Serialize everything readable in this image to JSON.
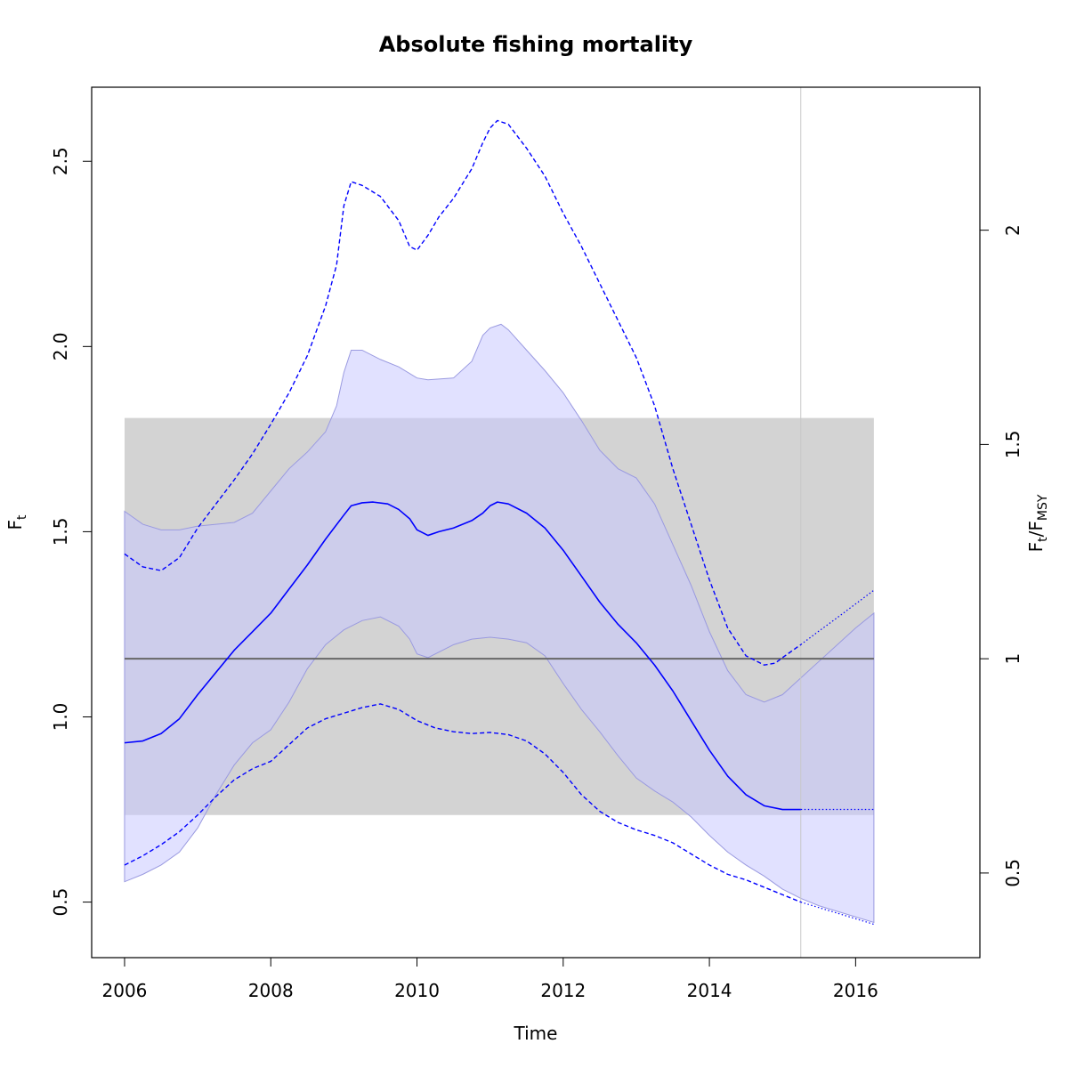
{
  "chart_data": {
    "type": "line",
    "title": "Absolute fishing mortality",
    "xlabel": "Time",
    "ylabel": {
      "main": "F",
      "sub": "t"
    },
    "ylabel_right": {
      "a": "F",
      "a_sub": "t",
      "slash": "/",
      "b": "F",
      "b_sub": "MSY"
    },
    "xlim": [
      2005.55,
      2017.7
    ],
    "ylim": [
      0.35,
      2.7
    ],
    "xticks": [
      2006,
      2008,
      2010,
      2012,
      2014,
      2016
    ],
    "xtick_labels": [
      "2006",
      "2008",
      "2010",
      "2012",
      "2014",
      "2016"
    ],
    "yticks": [
      0.5,
      1.0,
      1.5,
      2.0,
      2.5
    ],
    "ytick_labels": [
      "0.5",
      "1.0",
      "1.5",
      "2.0",
      "2.5"
    ],
    "fmsy": 1.157,
    "right_ticks": [
      0.5,
      1,
      1.5,
      2
    ],
    "right_tick_labels": [
      "0.5",
      "1",
      "1.5",
      "2"
    ],
    "fmsy_band": {
      "x0": 2006,
      "x1": 2016.25,
      "ylow": 0.735,
      "yhigh": 1.807
    },
    "forecast_start": 2015.25,
    "colors": {
      "estimate": "#0000ff",
      "ci_fill": "#c8c8ff",
      "band_fill": "#d3d3d3",
      "fmsy_line": "#666666",
      "vline": "#c8c8c8"
    },
    "series": [
      {
        "name": "F estimate",
        "style": "solid",
        "x": [
          2006.0,
          2006.25,
          2006.5,
          2006.75,
          2007.0,
          2007.25,
          2007.5,
          2007.75,
          2008.0,
          2008.25,
          2008.5,
          2008.75,
          2009.0,
          2009.1,
          2009.25,
          2009.4,
          2009.6,
          2009.75,
          2009.9,
          2010.0,
          2010.15,
          2010.3,
          2010.5,
          2010.75,
          2010.9,
          2011.0,
          2011.1,
          2011.25,
          2011.5,
          2011.75,
          2012.0,
          2012.25,
          2012.5,
          2012.75,
          2013.0,
          2013.25,
          2013.5,
          2013.75,
          2014.0,
          2014.25,
          2014.5,
          2014.75,
          2015.0,
          2015.25
        ],
        "values": [
          0.93,
          0.935,
          0.955,
          0.995,
          1.06,
          1.12,
          1.18,
          1.23,
          1.28,
          1.345,
          1.41,
          1.48,
          1.545,
          1.57,
          1.578,
          1.58,
          1.575,
          1.56,
          1.535,
          1.505,
          1.49,
          1.5,
          1.51,
          1.53,
          1.55,
          1.57,
          1.58,
          1.575,
          1.55,
          1.51,
          1.45,
          1.38,
          1.31,
          1.25,
          1.2,
          1.14,
          1.07,
          0.99,
          0.91,
          0.84,
          0.79,
          0.76,
          0.75,
          0.75
        ]
      },
      {
        "name": "F forecast",
        "style": "dotted",
        "x": [
          2015.25,
          2016.25
        ],
        "values": [
          0.75,
          0.75
        ]
      },
      {
        "name": "CI upper",
        "style": "dashed",
        "x": [
          2006.0,
          2006.25,
          2006.5,
          2006.75,
          2007.0,
          2007.25,
          2007.5,
          2007.75,
          2008.0,
          2008.25,
          2008.5,
          2008.75,
          2008.9,
          2009.0,
          2009.1,
          2009.25,
          2009.5,
          2009.75,
          2009.9,
          2010.0,
          2010.15,
          2010.3,
          2010.5,
          2010.75,
          2010.9,
          2011.0,
          2011.1,
          2011.25,
          2011.5,
          2011.75,
          2012.0,
          2012.25,
          2012.5,
          2012.75,
          2013.0,
          2013.25,
          2013.5,
          2013.75,
          2014.0,
          2014.25,
          2014.5,
          2014.75,
          2014.9,
          2015.0,
          2015.25
        ],
        "values": [
          1.44,
          1.405,
          1.395,
          1.43,
          1.51,
          1.575,
          1.64,
          1.71,
          1.79,
          1.875,
          1.975,
          2.11,
          2.22,
          2.38,
          2.445,
          2.435,
          2.405,
          2.34,
          2.27,
          2.26,
          2.3,
          2.35,
          2.4,
          2.48,
          2.55,
          2.59,
          2.61,
          2.6,
          2.535,
          2.46,
          2.36,
          2.27,
          2.17,
          2.07,
          1.97,
          1.84,
          1.67,
          1.52,
          1.37,
          1.24,
          1.165,
          1.14,
          1.145,
          1.16,
          1.195
        ]
      },
      {
        "name": "CI upper forecast",
        "style": "dotted",
        "x": [
          2015.25,
          2015.5,
          2015.75,
          2016.0,
          2016.25
        ],
        "values": [
          1.195,
          1.232,
          1.268,
          1.305,
          1.342
        ]
      },
      {
        "name": "CI lower",
        "style": "dashed",
        "x": [
          2006.0,
          2006.25,
          2006.5,
          2006.75,
          2007.0,
          2007.25,
          2007.5,
          2007.75,
          2008.0,
          2008.25,
          2008.5,
          2008.75,
          2009.0,
          2009.25,
          2009.5,
          2009.75,
          2010.0,
          2010.25,
          2010.5,
          2010.75,
          2011.0,
          2011.25,
          2011.5,
          2011.75,
          2012.0,
          2012.25,
          2012.5,
          2012.75,
          2013.0,
          2013.25,
          2013.5,
          2013.75,
          2014.0,
          2014.25,
          2014.5,
          2014.75,
          2015.0,
          2015.25
        ],
        "values": [
          0.6,
          0.625,
          0.655,
          0.69,
          0.735,
          0.785,
          0.83,
          0.86,
          0.88,
          0.925,
          0.97,
          0.995,
          1.01,
          1.025,
          1.035,
          1.02,
          0.99,
          0.97,
          0.96,
          0.955,
          0.958,
          0.952,
          0.935,
          0.9,
          0.85,
          0.79,
          0.745,
          0.715,
          0.695,
          0.68,
          0.66,
          0.63,
          0.6,
          0.575,
          0.56,
          0.54,
          0.52,
          0.5
        ]
      },
      {
        "name": "CI lower forecast",
        "style": "dotted",
        "x": [
          2015.25,
          2015.5,
          2015.75,
          2016.0,
          2016.25
        ],
        "values": [
          0.5,
          0.485,
          0.47,
          0.455,
          0.44
        ]
      },
      {
        "name": "Prediction band upper",
        "style": "fill",
        "x": [
          2006.0,
          2006.25,
          2006.5,
          2006.75,
          2007.0,
          2007.25,
          2007.5,
          2007.75,
          2008.0,
          2008.25,
          2008.5,
          2008.75,
          2008.9,
          2009.0,
          2009.1,
          2009.25,
          2009.5,
          2009.75,
          2010.0,
          2010.15,
          2010.5,
          2010.75,
          2010.9,
          2011.0,
          2011.15,
          2011.25,
          2011.5,
          2011.75,
          2012.0,
          2012.25,
          2012.5,
          2012.75,
          2013.0,
          2013.25,
          2013.5,
          2013.75,
          2014.0,
          2014.25,
          2014.5,
          2014.75,
          2015.0,
          2015.25,
          2015.5,
          2015.75,
          2016.0,
          2016.25
        ],
        "values": [
          1.555,
          1.52,
          1.505,
          1.505,
          1.515,
          1.52,
          1.525,
          1.55,
          1.61,
          1.67,
          1.715,
          1.77,
          1.84,
          1.93,
          1.99,
          1.99,
          1.965,
          1.945,
          1.915,
          1.91,
          1.915,
          1.96,
          2.03,
          2.05,
          2.06,
          2.045,
          1.99,
          1.935,
          1.875,
          1.8,
          1.72,
          1.67,
          1.645,
          1.575,
          1.465,
          1.355,
          1.23,
          1.125,
          1.06,
          1.04,
          1.06,
          1.105,
          1.15,
          1.195,
          1.24,
          1.28
        ]
      },
      {
        "name": "Prediction band lower",
        "style": "fill",
        "x": [
          2006.0,
          2006.25,
          2006.5,
          2006.75,
          2007.0,
          2007.25,
          2007.5,
          2007.75,
          2008.0,
          2008.25,
          2008.5,
          2008.75,
          2009.0,
          2009.25,
          2009.5,
          2009.75,
          2009.9,
          2010.0,
          2010.15,
          2010.3,
          2010.5,
          2010.75,
          2011.0,
          2011.25,
          2011.5,
          2011.75,
          2012.0,
          2012.25,
          2012.5,
          2012.75,
          2013.0,
          2013.25,
          2013.5,
          2013.75,
          2014.0,
          2014.25,
          2014.5,
          2014.75,
          2015.0,
          2015.25,
          2015.5,
          2015.75,
          2016.0,
          2016.25
        ],
        "values": [
          0.555,
          0.575,
          0.6,
          0.635,
          0.7,
          0.79,
          0.87,
          0.93,
          0.965,
          1.04,
          1.13,
          1.195,
          1.235,
          1.26,
          1.27,
          1.245,
          1.21,
          1.17,
          1.16,
          1.175,
          1.195,
          1.21,
          1.215,
          1.21,
          1.2,
          1.165,
          1.09,
          1.02,
          0.96,
          0.895,
          0.835,
          0.8,
          0.77,
          0.73,
          0.68,
          0.635,
          0.6,
          0.57,
          0.535,
          0.51,
          0.49,
          0.475,
          0.46,
          0.445
        ]
      }
    ]
  }
}
